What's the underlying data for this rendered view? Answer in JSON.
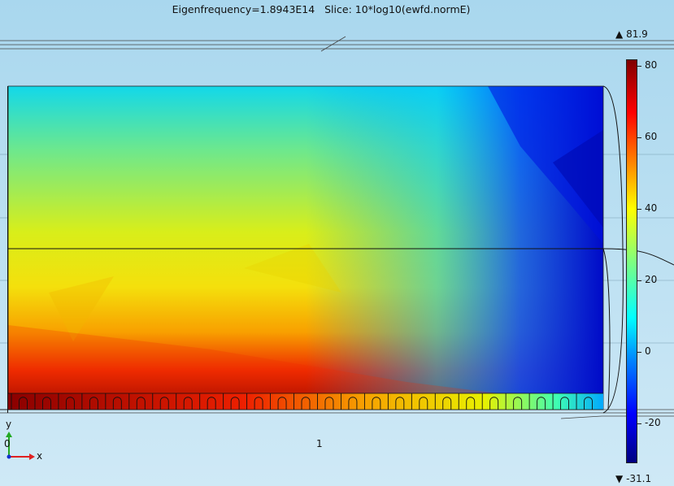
{
  "header": {
    "title": "Eigenfrequency=1.8943E14   Slice: 10*log10(ewfd.normE)"
  },
  "colorbar": {
    "max_label": "81.9",
    "min_label": "-31.1",
    "ticks": [
      "80",
      "60",
      "40",
      "20",
      "0",
      "-20"
    ],
    "tick_values": [
      80,
      60,
      40,
      20,
      0,
      -20
    ],
    "range": [
      -31.1,
      81.9
    ],
    "colormap": "jet",
    "colors": [
      "#00007f",
      "#0000ff",
      "#0080ff",
      "#00ffff",
      "#7fff7f",
      "#ffff00",
      "#ff8000",
      "#ff0000",
      "#7f0000"
    ]
  },
  "axes": {
    "x_tick_label": "1",
    "origin_label": "0",
    "x_axis_name": "x",
    "y_axis_name": "y",
    "x_axis_color": "#e02020",
    "y_axis_color": "#22aa22"
  },
  "plot": {
    "field": "10*log10(ewfd.normE)",
    "colormap": "jet",
    "grating_period_count": 25
  }
}
